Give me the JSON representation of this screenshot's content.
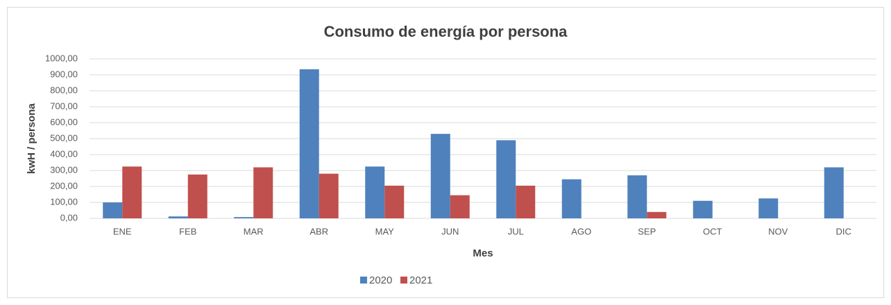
{
  "chart_data": {
    "type": "bar",
    "title": "Consumo de energía por persona",
    "x_label": "Mes",
    "y_label": "kwH / persona",
    "categories": [
      "ENE",
      "FEB",
      "MAR",
      "ABR",
      "MAY",
      "JUN",
      "JUL",
      "AGO",
      "SEP",
      "OCT",
      "NOV",
      "DIC"
    ],
    "series": [
      {
        "name": "2020",
        "color": "#4f81bd",
        "values": [
          100,
          12,
          8,
          935,
          325,
          530,
          490,
          245,
          270,
          110,
          125,
          320
        ]
      },
      {
        "name": "2021",
        "color": "#c0504d",
        "values": [
          325,
          275,
          320,
          280,
          205,
          145,
          205,
          null,
          40,
          null,
          null,
          null
        ]
      }
    ],
    "ylim": [
      0,
      1000
    ],
    "yticks": [
      {
        "value": 0,
        "label": "0,00"
      },
      {
        "value": 100,
        "label": "100,00"
      },
      {
        "value": 200,
        "label": "200,00"
      },
      {
        "value": 300,
        "label": "300,00"
      },
      {
        "value": 400,
        "label": "400,00"
      },
      {
        "value": 500,
        "label": "500,00"
      },
      {
        "value": 600,
        "label": "600,00"
      },
      {
        "value": 700,
        "label": "700,00"
      },
      {
        "value": 800,
        "label": "800,00"
      },
      {
        "value": 900,
        "label": "900,00"
      },
      {
        "value": 1000,
        "label": "1000,00"
      }
    ],
    "grid": true,
    "legend": "bottom"
  }
}
